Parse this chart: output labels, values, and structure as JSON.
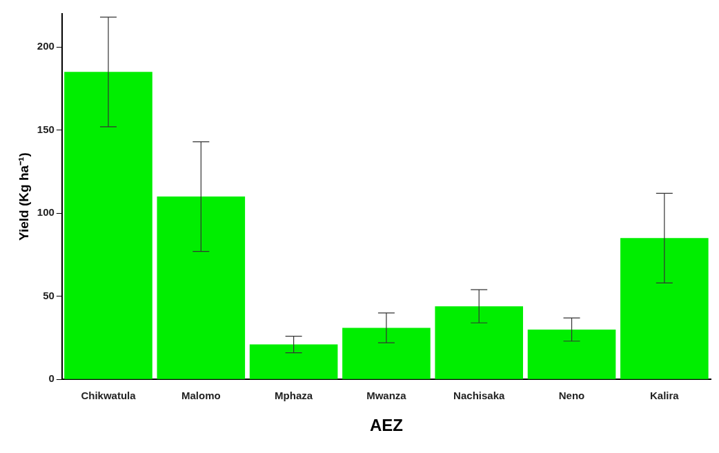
{
  "chart_data": {
    "type": "bar",
    "xlabel": "AEZ",
    "ylabel": "Yield (Kg ha⁻¹)",
    "categories": [
      "Chikwatula",
      "Malomo",
      "Mphaza",
      "Mwanza",
      "Nachisaka",
      "Neno",
      "Kalira"
    ],
    "values": [
      185,
      110,
      21,
      31,
      44,
      30,
      85
    ],
    "errors": [
      33,
      33,
      5,
      9,
      10,
      7,
      27
    ],
    "color": "#00ee00",
    "ylim": [
      0,
      220
    ],
    "yticks": [
      0,
      50,
      100,
      150,
      200
    ],
    "grid": false,
    "legend": false
  }
}
